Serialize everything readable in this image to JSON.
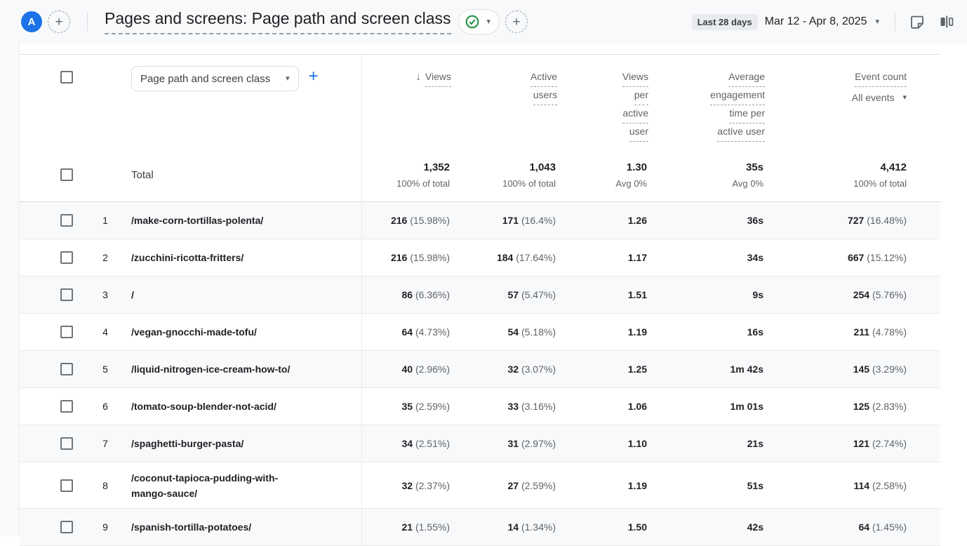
{
  "header": {
    "avatar_letter": "A",
    "title": "Pages and screens: Page path and screen class",
    "date_preset": "Last 28 days",
    "date_range": "Mar 12 - Apr 8, 2025"
  },
  "glyphs": {
    "sort_desc": "↓",
    "caret": "▾",
    "plus": "+"
  },
  "icons": {
    "avatar": "property-avatar",
    "add_collaborator": "plus-dashed-icon",
    "report_status": "check-circle-green-icon",
    "add_comparison": "plus-dashed-icon",
    "notes": "note-icon",
    "comparison_panels": "comparison-icon"
  },
  "colors": {
    "accent_blue": "#1a73e8",
    "check_green": "#1e8e3e",
    "text_primary": "#202124",
    "text_secondary": "#5f6368",
    "stripe": "#f8f9fa",
    "topbar_bg": "#f8f9fa"
  },
  "table": {
    "dimension_selector_label": "Page path and screen class",
    "columns": {
      "views": {
        "lines": [
          "Views"
        ],
        "sorted_desc": true
      },
      "active_users": {
        "lines": [
          "Active",
          "users"
        ]
      },
      "views_per_active_user": {
        "lines": [
          "Views",
          "per",
          "active",
          "user"
        ]
      },
      "avg_engagement": {
        "lines": [
          "Average",
          "engagement",
          "time per",
          "active user"
        ]
      },
      "event_count": {
        "lines": [
          "Event count"
        ],
        "filter_label": "All events"
      }
    },
    "total": {
      "label": "Total",
      "views": "1,352",
      "views_sub": "100% of total",
      "users": "1,043",
      "users_sub": "100% of total",
      "vpu": "1.30",
      "vpu_sub": "Avg 0%",
      "time": "35s",
      "time_sub": "Avg 0%",
      "events": "4,412",
      "events_sub": "100% of total"
    },
    "rows": [
      {
        "num": "1",
        "path": "/make-corn-tortillas-polenta/",
        "views": "216",
        "views_pct": "(15.98%)",
        "users": "171",
        "users_pct": "(16.4%)",
        "vpu": "1.26",
        "time": "36s",
        "events": "727",
        "events_pct": "(16.48%)"
      },
      {
        "num": "2",
        "path": "/zucchini-ricotta-fritters/",
        "views": "216",
        "views_pct": "(15.98%)",
        "users": "184",
        "users_pct": "(17.64%)",
        "vpu": "1.17",
        "time": "34s",
        "events": "667",
        "events_pct": "(15.12%)"
      },
      {
        "num": "3",
        "path": "/",
        "views": "86",
        "views_pct": "(6.36%)",
        "users": "57",
        "users_pct": "(5.47%)",
        "vpu": "1.51",
        "time": "9s",
        "events": "254",
        "events_pct": "(5.76%)"
      },
      {
        "num": "4",
        "path": "/vegan-gnocchi-made-tofu/",
        "views": "64",
        "views_pct": "(4.73%)",
        "users": "54",
        "users_pct": "(5.18%)",
        "vpu": "1.19",
        "time": "16s",
        "events": "211",
        "events_pct": "(4.78%)"
      },
      {
        "num": "5",
        "path": "/liquid-nitrogen-ice-cream-how-to/",
        "views": "40",
        "views_pct": "(2.96%)",
        "users": "32",
        "users_pct": "(3.07%)",
        "vpu": "1.25",
        "time": "1m 42s",
        "events": "145",
        "events_pct": "(3.29%)"
      },
      {
        "num": "6",
        "path": "/tomato-soup-blender-not-acid/",
        "views": "35",
        "views_pct": "(2.59%)",
        "users": "33",
        "users_pct": "(3.16%)",
        "vpu": "1.06",
        "time": "1m 01s",
        "events": "125",
        "events_pct": "(2.83%)"
      },
      {
        "num": "7",
        "path": "/spaghetti-burger-pasta/",
        "views": "34",
        "views_pct": "(2.51%)",
        "users": "31",
        "users_pct": "(2.97%)",
        "vpu": "1.10",
        "time": "21s",
        "events": "121",
        "events_pct": "(2.74%)"
      },
      {
        "num": "8",
        "path": "/coconut-tapioca-pudding-with-mango-sauce/",
        "views": "32",
        "views_pct": "(2.37%)",
        "users": "27",
        "users_pct": "(2.59%)",
        "vpu": "1.19",
        "time": "51s",
        "events": "114",
        "events_pct": "(2.58%)"
      },
      {
        "num": "9",
        "path": "/spanish-tortilla-potatoes/",
        "views": "21",
        "views_pct": "(1.55%)",
        "users": "14",
        "users_pct": "(1.34%)",
        "vpu": "1.50",
        "time": "42s",
        "events": "64",
        "events_pct": "(1.45%)"
      }
    ]
  }
}
